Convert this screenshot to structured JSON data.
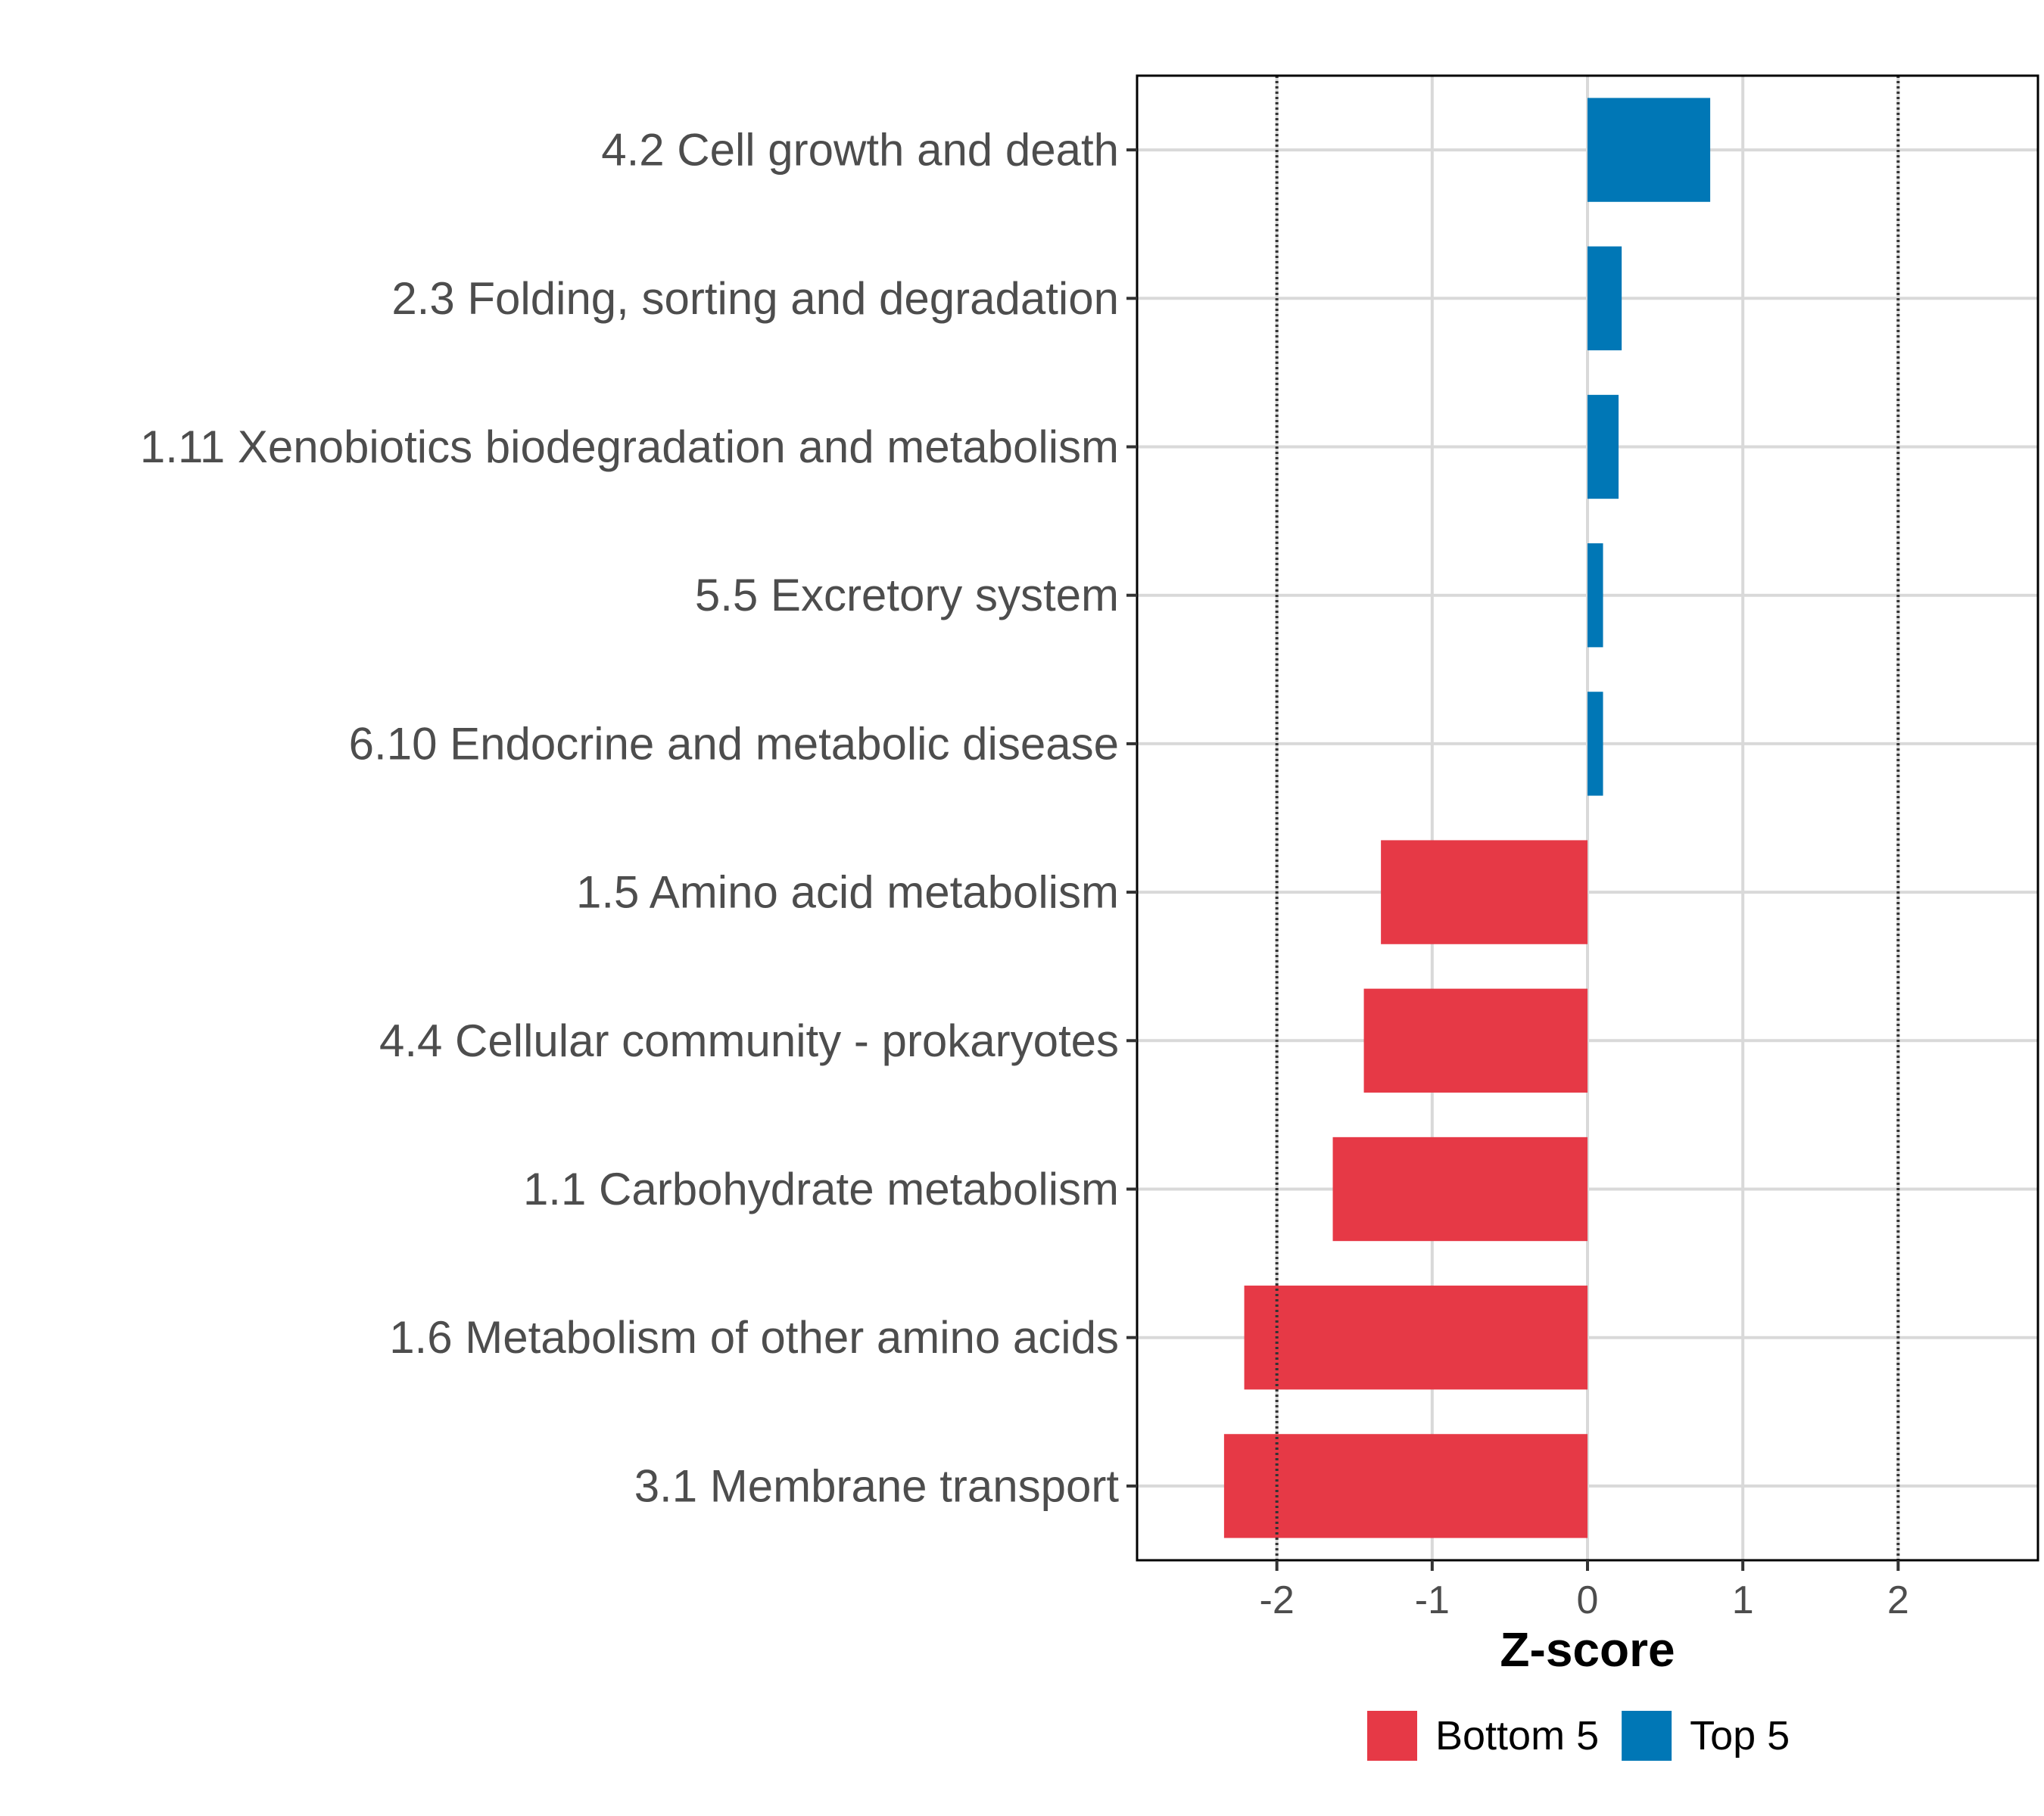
{
  "chart_data": {
    "type": "bar",
    "orientation": "horizontal",
    "title": "",
    "xlabel": "Z-score",
    "ylabel": "",
    "xlim": [
      -2.9,
      2.9
    ],
    "x_ticks": [
      -2,
      -1,
      0,
      1,
      2
    ],
    "x_tick_labels": [
      "-2",
      "-1",
      "0",
      "1",
      "2"
    ],
    "reference_lines": [
      -2,
      2
    ],
    "grid": true,
    "legend_position": "bottom",
    "categories": [
      "4.2 Cell growth and death",
      "2.3 Folding, sorting and degradation",
      "1.11 Xenobiotics biodegradation and metabolism",
      "5.5 Excretory system",
      "6.10 Endocrine and metabolic disease",
      "1.5 Amino acid metabolism",
      "4.4 Cellular community - prokaryotes",
      "1.1 Carbohydrate metabolism",
      "1.6 Metabolism of other amino acids",
      "3.1 Membrane transport"
    ],
    "values": [
      0.79,
      0.22,
      0.2,
      0.1,
      0.1,
      -1.33,
      -1.44,
      -1.64,
      -2.21,
      -2.34
    ],
    "groups": [
      "Top 5",
      "Top 5",
      "Top 5",
      "Top 5",
      "Top 5",
      "Bottom 5",
      "Bottom 5",
      "Bottom 5",
      "Bottom 5",
      "Bottom 5"
    ],
    "legend": [
      {
        "name": "Bottom 5",
        "color": "#E63946"
      },
      {
        "name": "Top 5",
        "color": "#0077B6"
      }
    ]
  }
}
